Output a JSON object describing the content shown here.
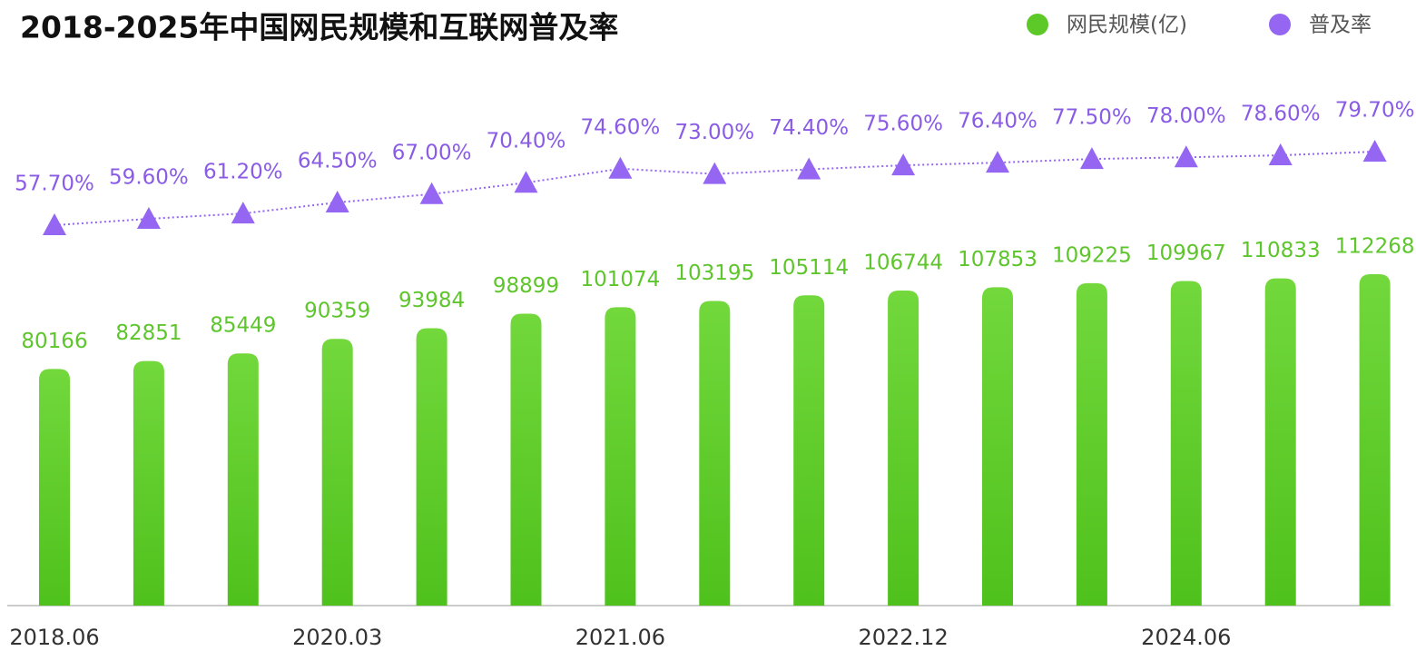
{
  "chart_data": {
    "type": "bar-line",
    "title": "2018-2025年中国网民规模和互联网普及率",
    "categories": [
      "2018.06",
      null,
      null,
      "2020.03",
      null,
      null,
      "2021.06",
      null,
      null,
      "2022.12",
      null,
      null,
      "2024.06",
      null,
      null
    ],
    "series": [
      {
        "name": "网民规模(亿)",
        "type": "bar",
        "color": "#5cc928",
        "values": [
          80166,
          82851,
          85449,
          90359,
          93984,
          98899,
          101074,
          103195,
          105114,
          106744,
          107853,
          109225,
          109967,
          110833,
          112268
        ]
      },
      {
        "name": "普及率",
        "type": "line",
        "color": "#9466f2",
        "values": [
          57.7,
          59.6,
          61.2,
          64.5,
          67.0,
          70.4,
          74.6,
          73.0,
          74.4,
          75.6,
          76.4,
          77.5,
          78.0,
          78.6,
          79.7
        ],
        "value_labels": [
          "57.70%",
          "59.60%",
          "61.20%",
          "64.50%",
          "67.00%",
          "70.40%",
          "74.60%",
          "73.00%",
          "74.40%",
          "75.60%",
          "76.40%",
          "77.50%",
          "78.00%",
          "78.60%",
          "79.70%"
        ]
      }
    ]
  }
}
